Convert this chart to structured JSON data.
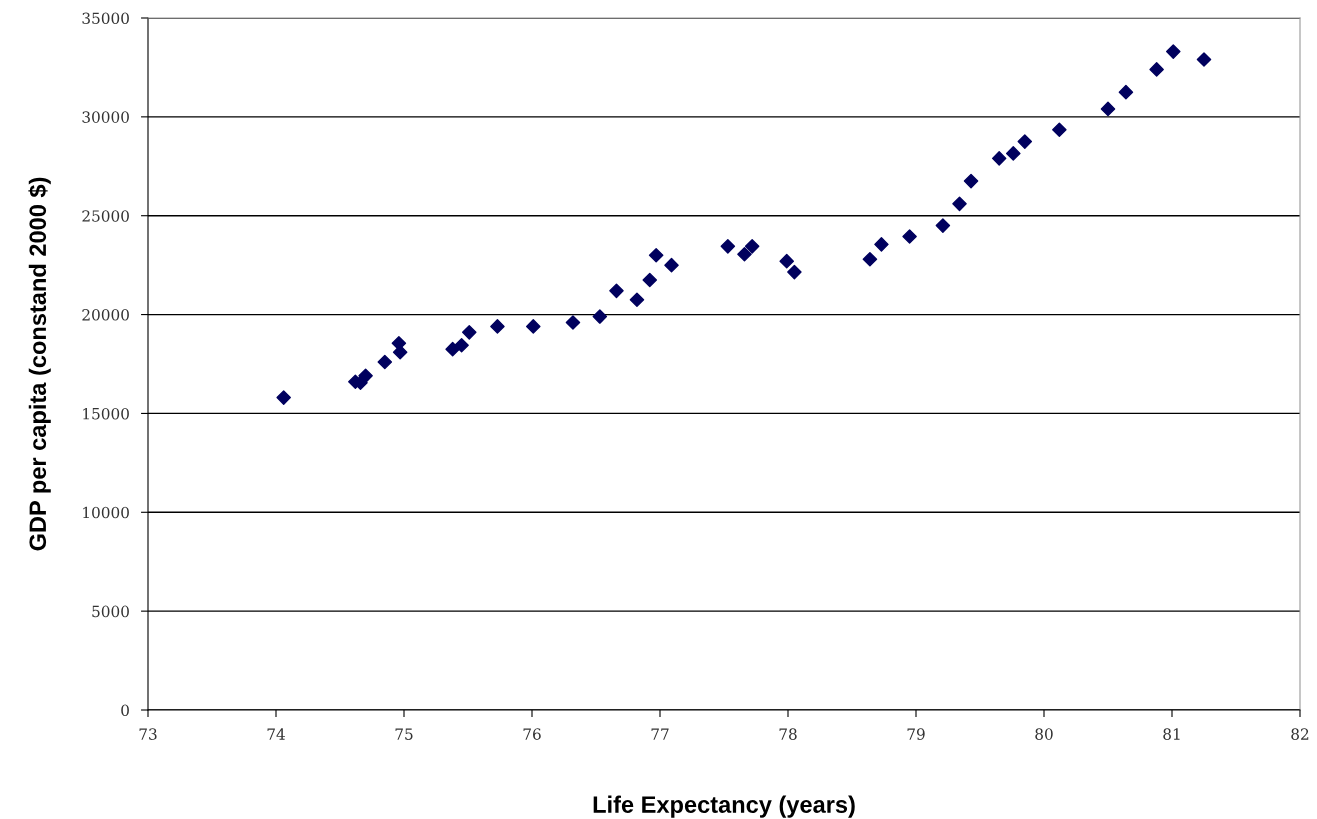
{
  "chart_data": {
    "type": "scatter",
    "xlabel": "Life Expectancy (years)",
    "ylabel": "GDP per capita (constand 2000 $)",
    "xlim": [
      73,
      82
    ],
    "xticks": [
      73,
      74,
      75,
      76,
      77,
      78,
      79,
      80,
      81,
      82
    ],
    "ylim": [
      0,
      35000
    ],
    "yticks": [
      0,
      5000,
      10000,
      15000,
      20000,
      25000,
      30000,
      35000
    ],
    "grid": "y",
    "marker": "diamond",
    "legend": false,
    "series": [
      {
        "color": "#00005e",
        "x": [
          74.06,
          74.62,
          74.66,
          74.7,
          74.85,
          74.96,
          74.97,
          75.38,
          75.45,
          75.51,
          75.73,
          76.01,
          76.32,
          76.53,
          76.66,
          76.82,
          76.92,
          76.97,
          77.09,
          77.53,
          77.66,
          77.72,
          77.99,
          78.05,
          78.64,
          78.73,
          78.95,
          79.21,
          79.34,
          79.43,
          79.65,
          79.76,
          79.85,
          80.12,
          80.5,
          80.64,
          80.88,
          81.01,
          81.25
        ],
        "values": [
          15800,
          16600,
          16550,
          16900,
          17600,
          18550,
          18100,
          18250,
          18450,
          19100,
          19400,
          19400,
          19600,
          19900,
          21200,
          20750,
          21750,
          23000,
          22500,
          23450,
          23050,
          23450,
          22700,
          22150,
          22800,
          23550,
          23950,
          24500,
          25600,
          26750,
          27900,
          28150,
          28750,
          29350,
          30400,
          31250,
          32400,
          33300,
          32900
        ]
      }
    ]
  }
}
